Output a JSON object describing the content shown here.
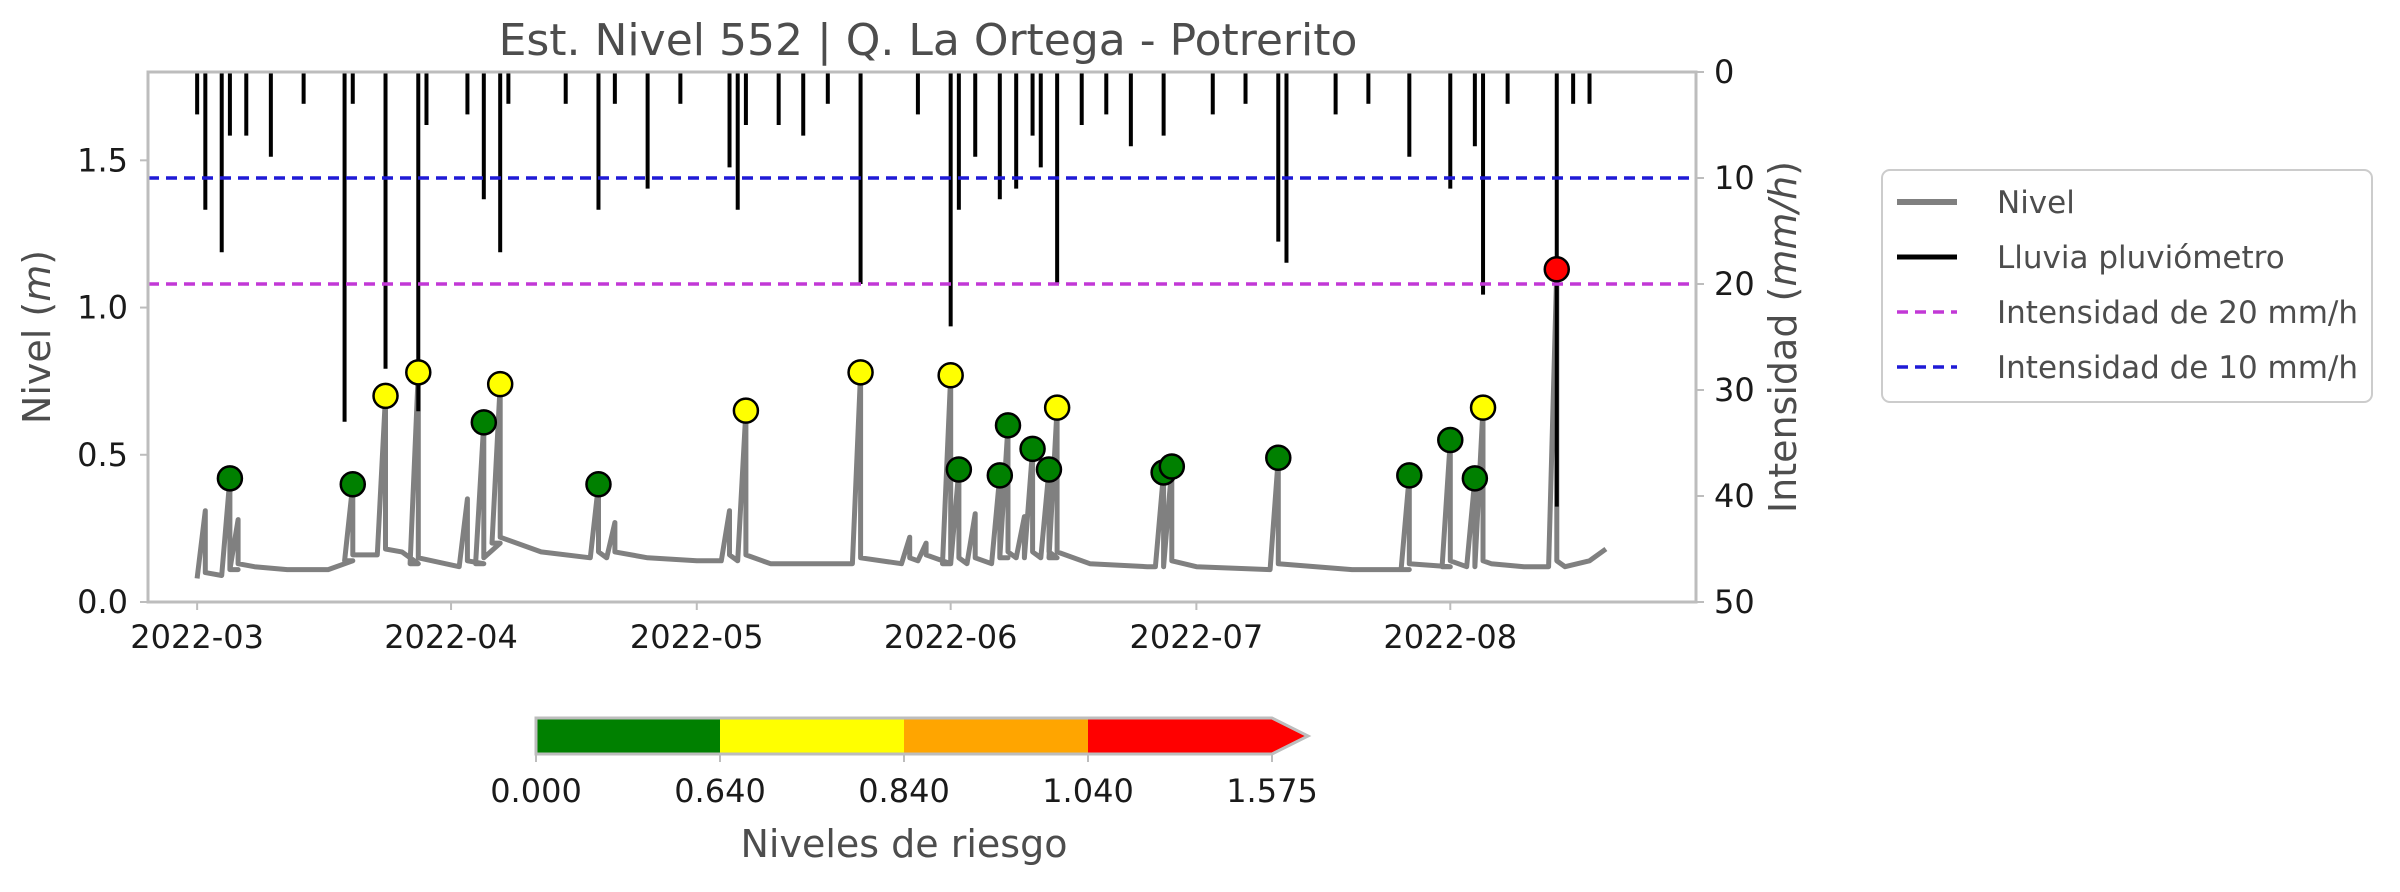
{
  "chart_data": {
    "type": "line",
    "title": "Est. Nivel 552 | Q. La Ortega - Potrerito",
    "ylabel_left": "Nivel",
    "ylabel_left_unit": "m",
    "ylabel_right": "Intensidad",
    "ylabel_right_unit": "mm/h",
    "xlim": [
      "2022-02-23",
      "2022-08-31"
    ],
    "ylim_left": [
      0,
      1.8
    ],
    "ylim_right": [
      50,
      0
    ],
    "x_ticks": [
      "2022-03-01",
      "2022-04-01",
      "2022-05-01",
      "2022-06-01",
      "2022-07-01",
      "2022-08-01"
    ],
    "x_tick_labels": [
      "2022-03",
      "2022-04",
      "2022-05",
      "2022-06",
      "2022-07",
      "2022-08"
    ],
    "y_left_ticks": [
      "0.0",
      "0.5",
      "1.0",
      "1.5"
    ],
    "y_right_ticks": [
      "0",
      "10",
      "20",
      "30",
      "40",
      "50"
    ],
    "grid": false,
    "legend_position": "outside-right",
    "series": [
      {
        "name": "Nivel",
        "color": "#808080",
        "baseline": [
          [
            "2022-03-01",
            0.08
          ],
          [
            "2022-03-04",
            0.09
          ],
          [
            "2022-03-06",
            0.11
          ],
          [
            "2022-03-08",
            0.12
          ],
          [
            "2022-03-12",
            0.11
          ],
          [
            "2022-03-17",
            0.11
          ],
          [
            "2022-03-20",
            0.14
          ],
          [
            "2022-03-23",
            0.16
          ],
          [
            "2022-03-26",
            0.17
          ],
          [
            "2022-03-28",
            0.13
          ],
          [
            "2022-04-02",
            0.12
          ],
          [
            "2022-04-05",
            0.13
          ],
          [
            "2022-04-07",
            0.2
          ],
          [
            "2022-04-12",
            0.17
          ],
          [
            "2022-04-18",
            0.15
          ],
          [
            "2022-04-25",
            0.15
          ],
          [
            "2022-05-01",
            0.14
          ],
          [
            "2022-05-10",
            0.13
          ],
          [
            "2022-05-20",
            0.13
          ],
          [
            "2022-05-28",
            0.14
          ],
          [
            "2022-06-01",
            0.13
          ],
          [
            "2022-06-08",
            0.15
          ],
          [
            "2022-06-14",
            0.15
          ],
          [
            "2022-06-18",
            0.13
          ],
          [
            "2022-06-25",
            0.12
          ],
          [
            "2022-07-01",
            0.12
          ],
          [
            "2022-07-10",
            0.11
          ],
          [
            "2022-07-20",
            0.11
          ],
          [
            "2022-07-27",
            0.11
          ],
          [
            "2022-08-01",
            0.12
          ],
          [
            "2022-08-06",
            0.13
          ],
          [
            "2022-08-10",
            0.12
          ],
          [
            "2022-08-15",
            0.12
          ],
          [
            "2022-08-18",
            0.14
          ],
          [
            "2022-08-20",
            0.18
          ]
        ],
        "peaks": [
          [
            "2022-03-02",
            0.31
          ],
          [
            "2022-03-05",
            0.42
          ],
          [
            "2022-03-06",
            0.28
          ],
          [
            "2022-03-20",
            0.4
          ],
          [
            "2022-03-24",
            0.7
          ],
          [
            "2022-03-28",
            0.78
          ],
          [
            "2022-04-03",
            0.35
          ],
          [
            "2022-04-05",
            0.61
          ],
          [
            "2022-04-07",
            0.74
          ],
          [
            "2022-04-19",
            0.4
          ],
          [
            "2022-04-21",
            0.27
          ],
          [
            "2022-05-05",
            0.31
          ],
          [
            "2022-05-07",
            0.65
          ],
          [
            "2022-05-21",
            0.78
          ],
          [
            "2022-05-27",
            0.22
          ],
          [
            "2022-05-29",
            0.2
          ],
          [
            "2022-06-01",
            0.77
          ],
          [
            "2022-06-02",
            0.45
          ],
          [
            "2022-06-04",
            0.3
          ],
          [
            "2022-06-07",
            0.43
          ],
          [
            "2022-06-08",
            0.6
          ],
          [
            "2022-06-10",
            0.29
          ],
          [
            "2022-06-11",
            0.52
          ],
          [
            "2022-06-13",
            0.45
          ],
          [
            "2022-06-14",
            0.66
          ],
          [
            "2022-06-27",
            0.44
          ],
          [
            "2022-06-28",
            0.46
          ],
          [
            "2022-07-11",
            0.49
          ],
          [
            "2022-07-27",
            0.43
          ],
          [
            "2022-08-01",
            0.55
          ],
          [
            "2022-08-04",
            0.42
          ],
          [
            "2022-08-05",
            0.66
          ],
          [
            "2022-08-14",
            1.13
          ]
        ]
      },
      {
        "name": "Lluvia pluviómetro",
        "color": "#000000"
      },
      {
        "name": "Intensidad de 20 mm/h",
        "color": "#c238d6",
        "value_mm_h": 20
      },
      {
        "name": "Intensidad de 10 mm/h",
        "color": "#1f1ad6",
        "value_mm_h": 10
      }
    ],
    "rain_events_mm_h": [
      [
        "2022-03-01",
        4
      ],
      [
        "2022-03-02",
        13
      ],
      [
        "2022-03-04",
        17
      ],
      [
        "2022-03-05",
        6
      ],
      [
        "2022-03-07",
        6
      ],
      [
        "2022-03-10",
        8
      ],
      [
        "2022-03-14",
        3
      ],
      [
        "2022-03-19",
        33
      ],
      [
        "2022-03-20",
        3
      ],
      [
        "2022-03-24",
        28
      ],
      [
        "2022-03-28",
        32
      ],
      [
        "2022-03-29",
        5
      ],
      [
        "2022-04-03",
        4
      ],
      [
        "2022-04-05",
        12
      ],
      [
        "2022-04-07",
        17
      ],
      [
        "2022-04-08",
        3
      ],
      [
        "2022-04-15",
        3
      ],
      [
        "2022-04-19",
        13
      ],
      [
        "2022-04-21",
        3
      ],
      [
        "2022-04-25",
        11
      ],
      [
        "2022-04-29",
        3
      ],
      [
        "2022-05-05",
        9
      ],
      [
        "2022-05-06",
        13
      ],
      [
        "2022-05-07",
        5
      ],
      [
        "2022-05-11",
        5
      ],
      [
        "2022-05-14",
        6
      ],
      [
        "2022-05-17",
        3
      ],
      [
        "2022-05-21",
        20
      ],
      [
        "2022-05-28",
        4
      ],
      [
        "2022-06-01",
        24
      ],
      [
        "2022-06-02",
        13
      ],
      [
        "2022-06-04",
        8
      ],
      [
        "2022-06-07",
        12
      ],
      [
        "2022-06-09",
        11
      ],
      [
        "2022-06-11",
        6
      ],
      [
        "2022-06-12",
        9
      ],
      [
        "2022-06-14",
        20
      ],
      [
        "2022-06-17",
        5
      ],
      [
        "2022-06-20",
        4
      ],
      [
        "2022-06-23",
        7
      ],
      [
        "2022-06-27",
        6
      ],
      [
        "2022-07-03",
        4
      ],
      [
        "2022-07-07",
        3
      ],
      [
        "2022-07-11",
        16
      ],
      [
        "2022-07-12",
        18
      ],
      [
        "2022-07-18",
        4
      ],
      [
        "2022-07-22",
        3
      ],
      [
        "2022-07-27",
        8
      ],
      [
        "2022-08-01",
        11
      ],
      [
        "2022-08-04",
        7
      ],
      [
        "2022-08-05",
        21
      ],
      [
        "2022-08-08",
        3
      ],
      [
        "2022-08-14",
        41
      ],
      [
        "2022-08-16",
        3
      ],
      [
        "2022-08-18",
        3
      ]
    ],
    "markers": [
      {
        "x": "2022-03-05",
        "nivel": 0.42
      },
      {
        "x": "2022-03-20",
        "nivel": 0.4
      },
      {
        "x": "2022-03-24",
        "nivel": 0.7
      },
      {
        "x": "2022-03-28",
        "nivel": 0.78
      },
      {
        "x": "2022-04-05",
        "nivel": 0.61
      },
      {
        "x": "2022-04-07",
        "nivel": 0.74
      },
      {
        "x": "2022-04-19",
        "nivel": 0.4
      },
      {
        "x": "2022-05-07",
        "nivel": 0.65
      },
      {
        "x": "2022-05-21",
        "nivel": 0.78
      },
      {
        "x": "2022-06-01",
        "nivel": 0.77
      },
      {
        "x": "2022-06-02",
        "nivel": 0.45
      },
      {
        "x": "2022-06-07",
        "nivel": 0.43
      },
      {
        "x": "2022-06-08",
        "nivel": 0.6
      },
      {
        "x": "2022-06-11",
        "nivel": 0.52
      },
      {
        "x": "2022-06-13",
        "nivel": 0.45
      },
      {
        "x": "2022-06-14",
        "nivel": 0.66
      },
      {
        "x": "2022-06-27",
        "nivel": 0.44
      },
      {
        "x": "2022-06-28",
        "nivel": 0.46
      },
      {
        "x": "2022-07-11",
        "nivel": 0.49
      },
      {
        "x": "2022-07-27",
        "nivel": 0.43
      },
      {
        "x": "2022-08-01",
        "nivel": 0.55
      },
      {
        "x": "2022-08-04",
        "nivel": 0.42
      },
      {
        "x": "2022-08-05",
        "nivel": 0.66
      },
      {
        "x": "2022-08-14",
        "nivel": 1.13
      }
    ],
    "colorbar": {
      "label": "Niveles de riesgo",
      "boundaries": [
        0.0,
        0.64,
        0.84,
        1.04,
        1.575
      ],
      "tick_labels": [
        "0.000",
        "0.640",
        "0.840",
        "1.040",
        "1.575"
      ],
      "colors": [
        "#008000",
        "#ffff00",
        "#ffa500",
        "#ff0000"
      ],
      "extend": "max"
    }
  }
}
